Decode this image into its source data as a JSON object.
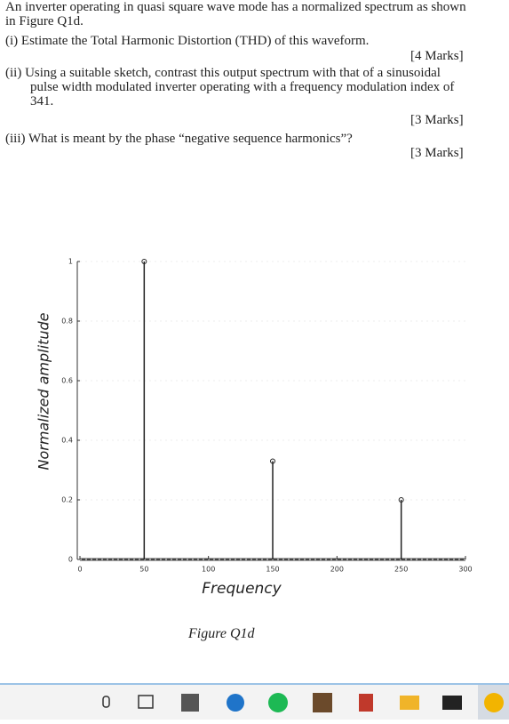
{
  "document": {
    "intro": "An inverter operating in quasi square wave mode has a normalized spectrum as shown in Figure Q1d.",
    "q1": "(i) Estimate the Total Harmonic Distortion (THD) of this waveform.",
    "q1_marks": "[4 Marks]",
    "q2": "(ii) Using a suitable sketch, contrast this output spectrum with that of a sinusoidal pulse width modulated inverter operating with a frequency modulation index of 341.",
    "q2_marks": "[3 Marks]",
    "q3": "(iii) What is meant by the phase “negative sequence harmonics”?",
    "q3_marks": "[3 Marks]",
    "caption": "Figure Q1d"
  },
  "chart_data": {
    "type": "stem",
    "x_label": "Frequency",
    "y_label": "Normalized amplitude",
    "x": [
      50,
      150,
      250
    ],
    "values": [
      1,
      0.33,
      0.2
    ],
    "color": "#222222",
    "xlim": [
      0,
      300
    ],
    "xticks": [
      0,
      50,
      100,
      150,
      200,
      250,
      300
    ],
    "ylim": [
      0,
      1
    ],
    "yticks": [
      0,
      0.2,
      0.4,
      0.6,
      0.8,
      1
    ]
  }
}
